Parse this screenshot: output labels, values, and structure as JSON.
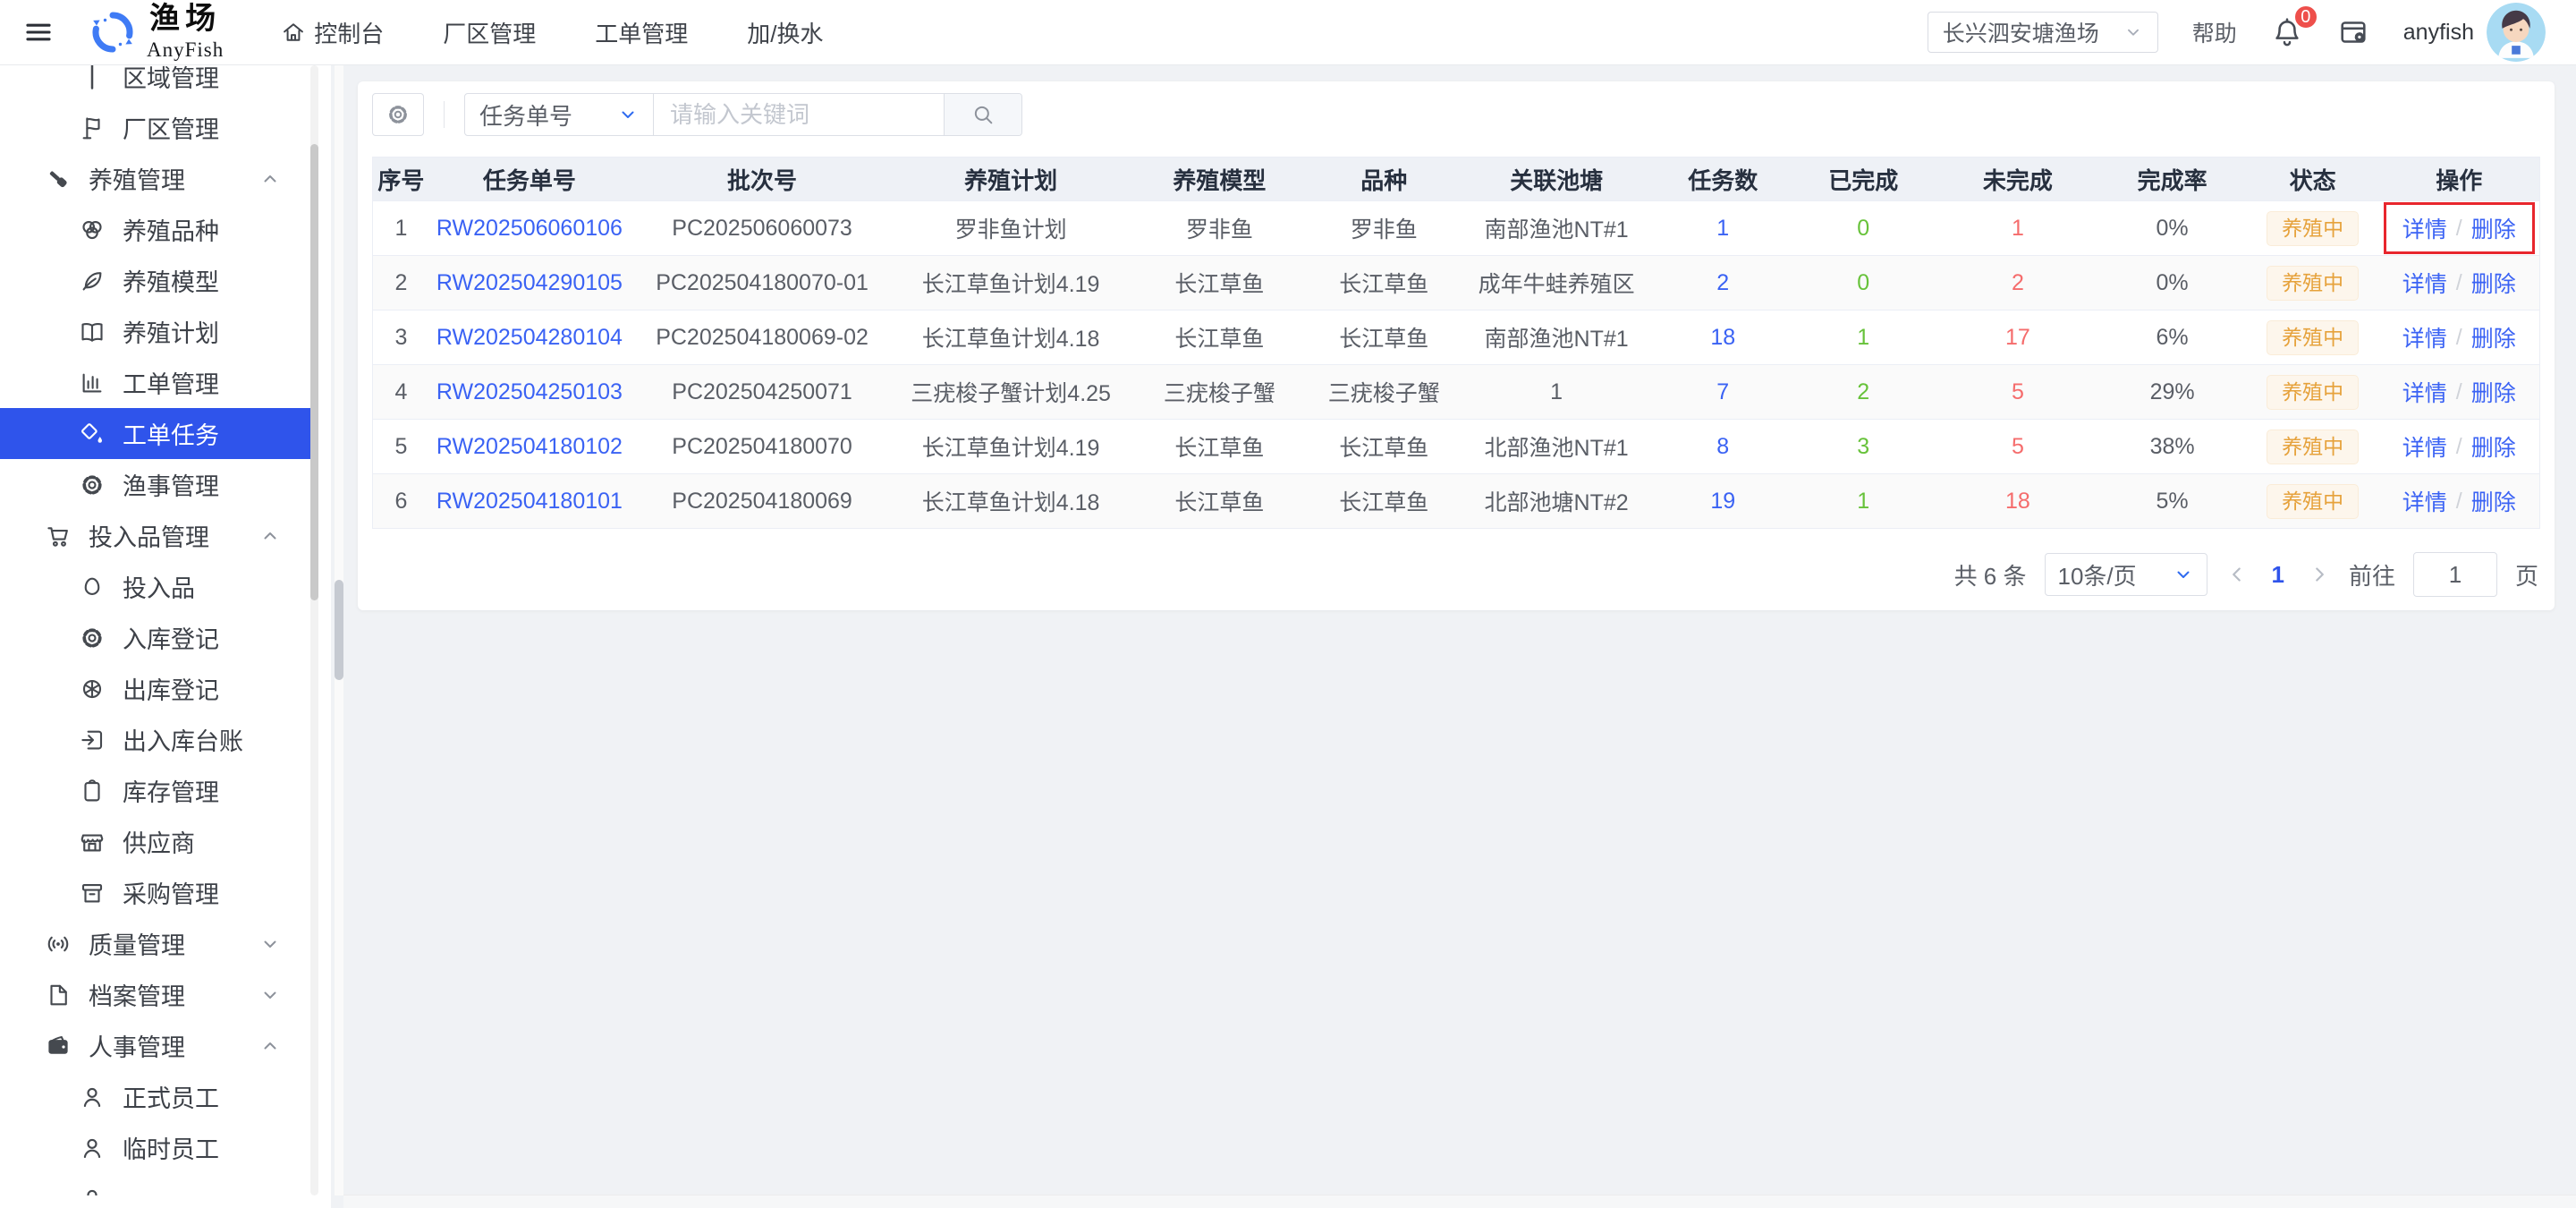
{
  "colors": {
    "primary": "#2f54eb",
    "link": "#3a62f4",
    "success": "#67c23a",
    "danger": "#f56c6c",
    "warning_text": "#e6a23c",
    "warning_bg": "#fdf6ec",
    "highlight_box": "#e8262d",
    "page_bg": "#f0f2f5"
  },
  "navbar": {
    "brand": {
      "title": "渔场",
      "subtitle": "AnyFish"
    },
    "items": [
      {
        "label": "控制台"
      },
      {
        "label": "厂区管理"
      },
      {
        "label": "工单管理"
      },
      {
        "label": "加/换水"
      }
    ],
    "farm_select": {
      "value": "长兴泗安塘渔场"
    },
    "help": "帮助",
    "notification_count": "0",
    "username": "anyfish"
  },
  "sidebar": {
    "items": [
      {
        "id": "area",
        "label": "区域管理",
        "icon": "pin",
        "level": "sub",
        "clip": "clip-top"
      },
      {
        "id": "factory",
        "label": "厂区管理",
        "icon": "flag",
        "level": "sub"
      },
      {
        "id": "breeding",
        "label": "养殖管理",
        "icon": "hammer",
        "level": "group",
        "expand": "up"
      },
      {
        "id": "species",
        "label": "养殖品种",
        "icon": "venn",
        "level": "sub"
      },
      {
        "id": "model",
        "label": "养殖模型",
        "icon": "leaf",
        "level": "sub"
      },
      {
        "id": "plan",
        "label": "养殖计划",
        "icon": "book",
        "level": "sub"
      },
      {
        "id": "workorder",
        "label": "工单管理",
        "icon": "chart",
        "level": "sub"
      },
      {
        "id": "task",
        "label": "工单任务",
        "icon": "bucket",
        "level": "sub",
        "selected": true
      },
      {
        "id": "fishery",
        "label": "渔事管理",
        "icon": "gear",
        "level": "sub"
      },
      {
        "id": "inputs-group",
        "label": "投入品管理",
        "icon": "cart",
        "level": "group",
        "expand": "up"
      },
      {
        "id": "inputs",
        "label": "投入品",
        "icon": "egg",
        "level": "sub"
      },
      {
        "id": "inbound",
        "label": "入库登记",
        "icon": "gear",
        "level": "sub"
      },
      {
        "id": "outbound",
        "label": "出库登记",
        "icon": "wheel",
        "level": "sub"
      },
      {
        "id": "ledger",
        "label": "出入库台账",
        "icon": "login",
        "level": "sub"
      },
      {
        "id": "inventory",
        "label": "库存管理",
        "icon": "clipboard",
        "level": "sub"
      },
      {
        "id": "supplier",
        "label": "供应商",
        "icon": "shop",
        "level": "sub"
      },
      {
        "id": "purchase",
        "label": "采购管理",
        "icon": "archive",
        "level": "sub"
      },
      {
        "id": "quality",
        "label": "质量管理",
        "icon": "signal",
        "level": "group",
        "expand": "down"
      },
      {
        "id": "archives",
        "label": "档案管理",
        "icon": "file",
        "level": "group",
        "expand": "down"
      },
      {
        "id": "hr",
        "label": "人事管理",
        "icon": "wallet",
        "level": "group",
        "expand": "up"
      },
      {
        "id": "staff",
        "label": "正式员工",
        "icon": "person",
        "level": "sub"
      },
      {
        "id": "temp-staff",
        "label": "临时员工",
        "icon": "person",
        "level": "sub"
      },
      {
        "id": "clipped",
        "label": "",
        "icon": "person",
        "level": "sub",
        "clip": "clip-bottom"
      }
    ]
  },
  "toolbar": {
    "filter_label": "任务单号",
    "placeholder": "请输入关键词"
  },
  "table": {
    "columns": [
      "序号",
      "任务单号",
      "批次号",
      "养殖计划",
      "养殖模型",
      "品种",
      "关联池塘",
      "任务数",
      "已完成",
      "未完成",
      "完成率",
      "状态",
      "操作"
    ],
    "action_sep": "/",
    "rows": [
      {
        "idx": "1",
        "task": "RW202506060106",
        "batch": "PC202506060073",
        "plan": "罗非鱼计划",
        "model": "罗非鱼",
        "species": "罗非鱼",
        "pond": "南部渔池NT#1",
        "tasks": "1",
        "done": "0",
        "undone": "1",
        "rate": "0%",
        "status": "养殖中",
        "actions": [
          "详情",
          "删除"
        ],
        "highlight": true
      },
      {
        "idx": "2",
        "task": "RW202504290105",
        "batch": "PC202504180070-01",
        "plan": "长江草鱼计划4.19",
        "model": "长江草鱼",
        "species": "长江草鱼",
        "pond": "成年牛蛙养殖区",
        "tasks": "2",
        "done": "0",
        "undone": "2",
        "rate": "0%",
        "status": "养殖中",
        "actions": [
          "详情",
          "删除"
        ],
        "highlight": false
      },
      {
        "idx": "3",
        "task": "RW202504280104",
        "batch": "PC202504180069-02",
        "plan": "长江草鱼计划4.18",
        "model": "长江草鱼",
        "species": "长江草鱼",
        "pond": "南部渔池NT#1",
        "tasks": "18",
        "done": "1",
        "undone": "17",
        "rate": "6%",
        "status": "养殖中",
        "actions": [
          "详情",
          "删除"
        ],
        "highlight": false
      },
      {
        "idx": "4",
        "task": "RW202504250103",
        "batch": "PC202504250071",
        "plan": "三疣梭子蟹计划4.25",
        "model": "三疣梭子蟹",
        "species": "三疣梭子蟹",
        "pond": "1",
        "tasks": "7",
        "done": "2",
        "undone": "5",
        "rate": "29%",
        "status": "养殖中",
        "actions": [
          "详情",
          "删除"
        ],
        "highlight": false
      },
      {
        "idx": "5",
        "task": "RW202504180102",
        "batch": "PC202504180070",
        "plan": "长江草鱼计划4.19",
        "model": "长江草鱼",
        "species": "长江草鱼",
        "pond": "北部渔池NT#1",
        "tasks": "8",
        "done": "3",
        "undone": "5",
        "rate": "38%",
        "status": "养殖中",
        "actions": [
          "详情",
          "删除"
        ],
        "highlight": false
      },
      {
        "idx": "6",
        "task": "RW202504180101",
        "batch": "PC202504180069",
        "plan": "长江草鱼计划4.18",
        "model": "长江草鱼",
        "species": "长江草鱼",
        "pond": "北部池塘NT#2",
        "tasks": "19",
        "done": "1",
        "undone": "18",
        "rate": "5%",
        "status": "养殖中",
        "actions": [
          "详情",
          "删除"
        ],
        "highlight": false
      }
    ]
  },
  "pagination": {
    "total": "共 6 条",
    "page_size": "10条/页",
    "current": "1",
    "goto_label": "前往",
    "goto_value": "1",
    "page_unit": "页"
  }
}
